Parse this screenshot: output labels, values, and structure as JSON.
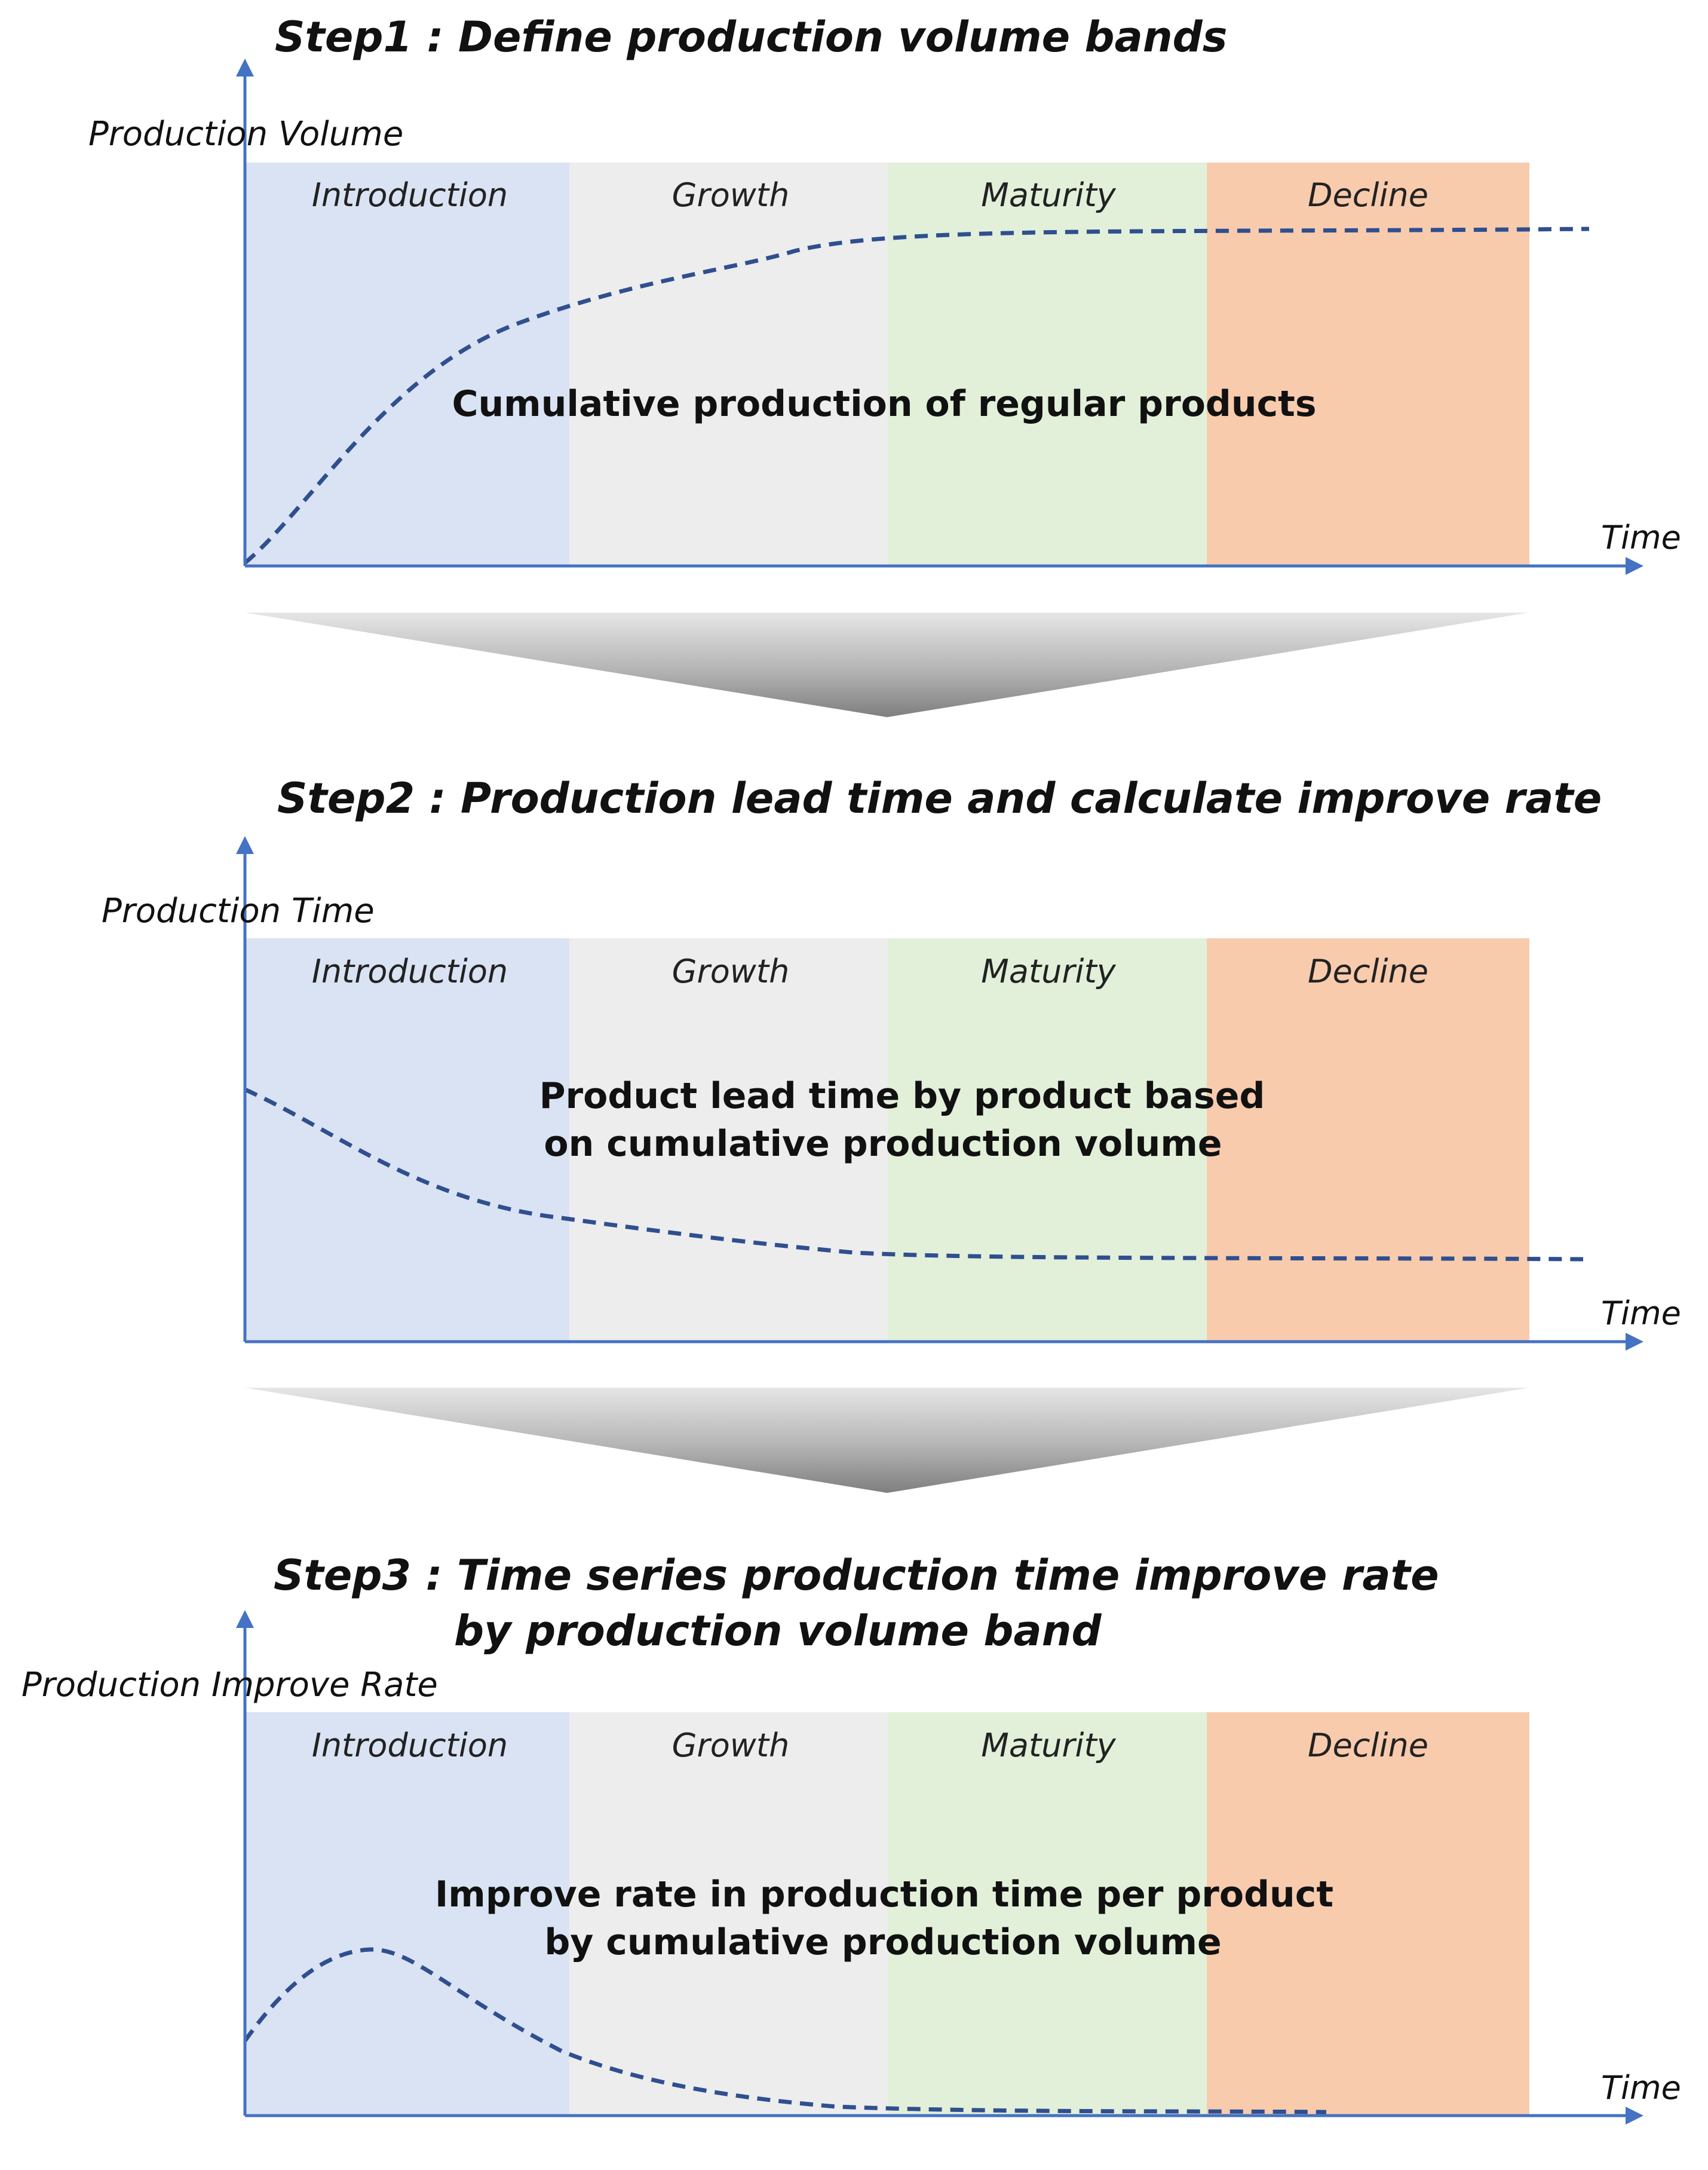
{
  "bands": {
    "introduction": "Introduction",
    "growth": "Growth",
    "maturity": "Maturity",
    "decline": "Decline"
  },
  "colors": {
    "introduction": "#dae3f3",
    "growth": "#ededed",
    "maturity": "#e2f0d9",
    "decline": "#f8cbad",
    "axis": "#4472c4",
    "curve": "#2f4f8f"
  },
  "step1": {
    "title": "Step1 : Define production volume bands",
    "y_label": "Production Volume",
    "x_label": "Time",
    "description": "Cumulative production of regular products"
  },
  "step2": {
    "title": "Step2 : Production lead time and calculate improve rate",
    "y_label": "Production Time",
    "x_label": "Time",
    "description_line1": "Product lead time by product based",
    "description_line2": "on cumulative production volume"
  },
  "step3": {
    "title_line1": "Step3 : Time series production time improve rate",
    "title_line2": "by production volume band",
    "y_label": "Production Improve Rate",
    "x_label": "Time",
    "description_line1": "Improve rate in production time per product",
    "description_line2": "by cumulative production volume"
  }
}
